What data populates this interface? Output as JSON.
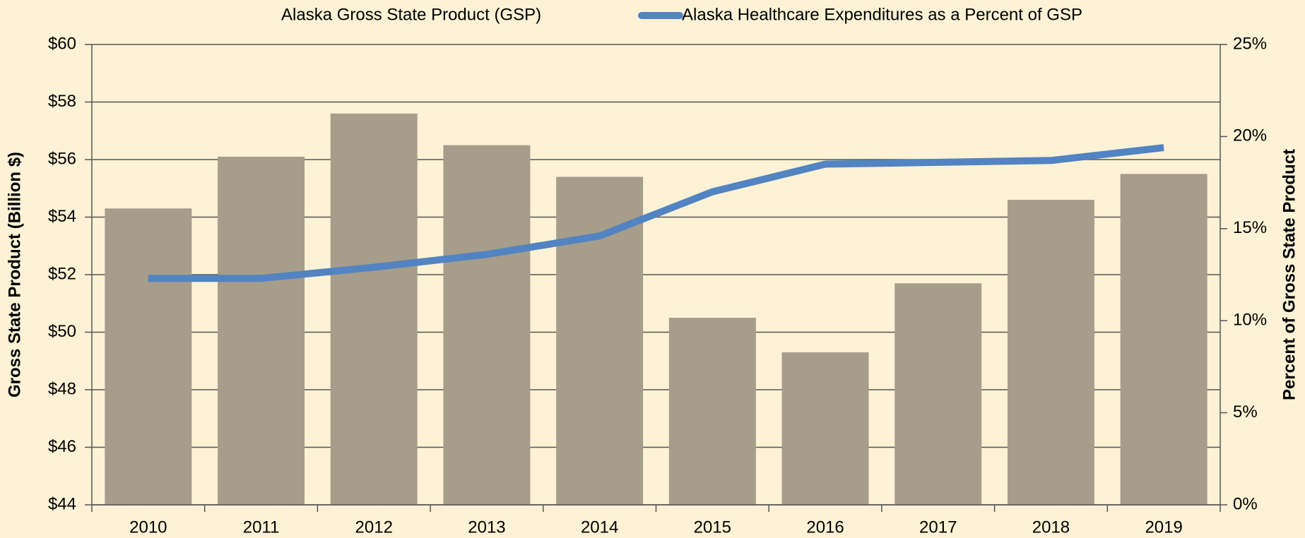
{
  "chart_data": {
    "type": "bar_line",
    "categories": [
      "2010",
      "2011",
      "2012",
      "2013",
      "2014",
      "2015",
      "2016",
      "2017",
      "2018",
      "2019"
    ],
    "series": [
      {
        "name": "Alaska Gross State Product (GSP)",
        "type": "bar",
        "color": "#a69d8a",
        "values": [
          54.3,
          56.1,
          57.6,
          56.5,
          55.4,
          50.5,
          49.3,
          51.7,
          54.6,
          55.5
        ]
      },
      {
        "name": "Alaska Healthcare Expenditures as a Percent of GSP",
        "type": "line",
        "axis": "y2",
        "color": "#5283c2",
        "values": [
          12.3,
          12.3,
          12.9,
          13.6,
          14.6,
          17.0,
          18.5,
          18.6,
          18.7,
          19.4
        ]
      }
    ],
    "ylabel": "Gross State Product (Billion $)",
    "y2label": "Percent of Gross State Product",
    "ylim": [
      44,
      60
    ],
    "yticks": [
      {
        "value": 44,
        "label": "$44"
      },
      {
        "value": 46,
        "label": "$46"
      },
      {
        "value": 48,
        "label": "$48"
      },
      {
        "value": 50,
        "label": "$50"
      },
      {
        "value": 52,
        "label": "$52"
      },
      {
        "value": 54,
        "label": "$54"
      },
      {
        "value": 56,
        "label": "$56"
      },
      {
        "value": 58,
        "label": "$58"
      },
      {
        "value": 60,
        "label": "$60"
      }
    ],
    "y2lim": [
      0,
      25
    ],
    "y2ticks": [
      {
        "value": 0,
        "label": "0%"
      },
      {
        "value": 5,
        "label": "5%"
      },
      {
        "value": 10,
        "label": "10%"
      },
      {
        "value": 15,
        "label": "15%"
      },
      {
        "value": 20,
        "label": "20%"
      },
      {
        "value": 25,
        "label": "25%"
      }
    ],
    "grid": true,
    "legend": "top"
  }
}
